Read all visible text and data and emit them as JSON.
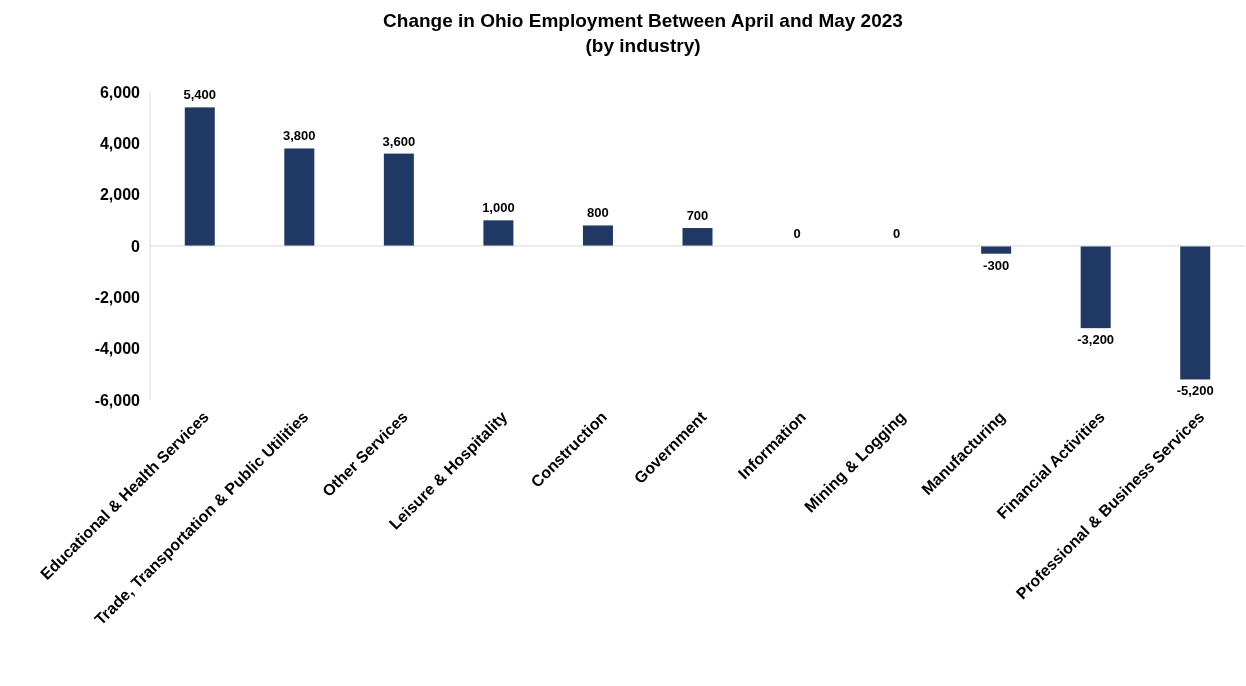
{
  "chart_data": {
    "type": "bar",
    "title": "Change in Ohio Employment Between April and May 2023",
    "subtitle": "(by industry)",
    "categories": [
      "Educational & Health Services",
      "Trade, Transportation & Public Utilities",
      "Other Services",
      "Leisure & Hospitality",
      "Construction",
      "Government",
      "Information",
      "Mining & Logging",
      "Manufacturing",
      "Financial Activities",
      "Professional & Business Services"
    ],
    "values": [
      5400,
      3800,
      3600,
      1000,
      800,
      700,
      0,
      0,
      -300,
      -3200,
      -5200
    ],
    "value_labels": [
      "5,400",
      "3,800",
      "3,600",
      "1,000",
      "800",
      "700",
      "0",
      "0",
      "-300",
      "-3,200",
      "-5,200"
    ],
    "color": "#1f3864",
    "ylim": [
      -6000,
      6000
    ],
    "yticks": [
      {
        "value": -6000,
        "label": "-6,000"
      },
      {
        "value": -4000,
        "label": "-4,000"
      },
      {
        "value": -2000,
        "label": "-2,000"
      },
      0,
      {
        "value": 2000,
        "label": "2,000"
      },
      {
        "value": 4000,
        "label": "4,000"
      },
      {
        "value": 6000,
        "label": "6,000"
      }
    ]
  }
}
